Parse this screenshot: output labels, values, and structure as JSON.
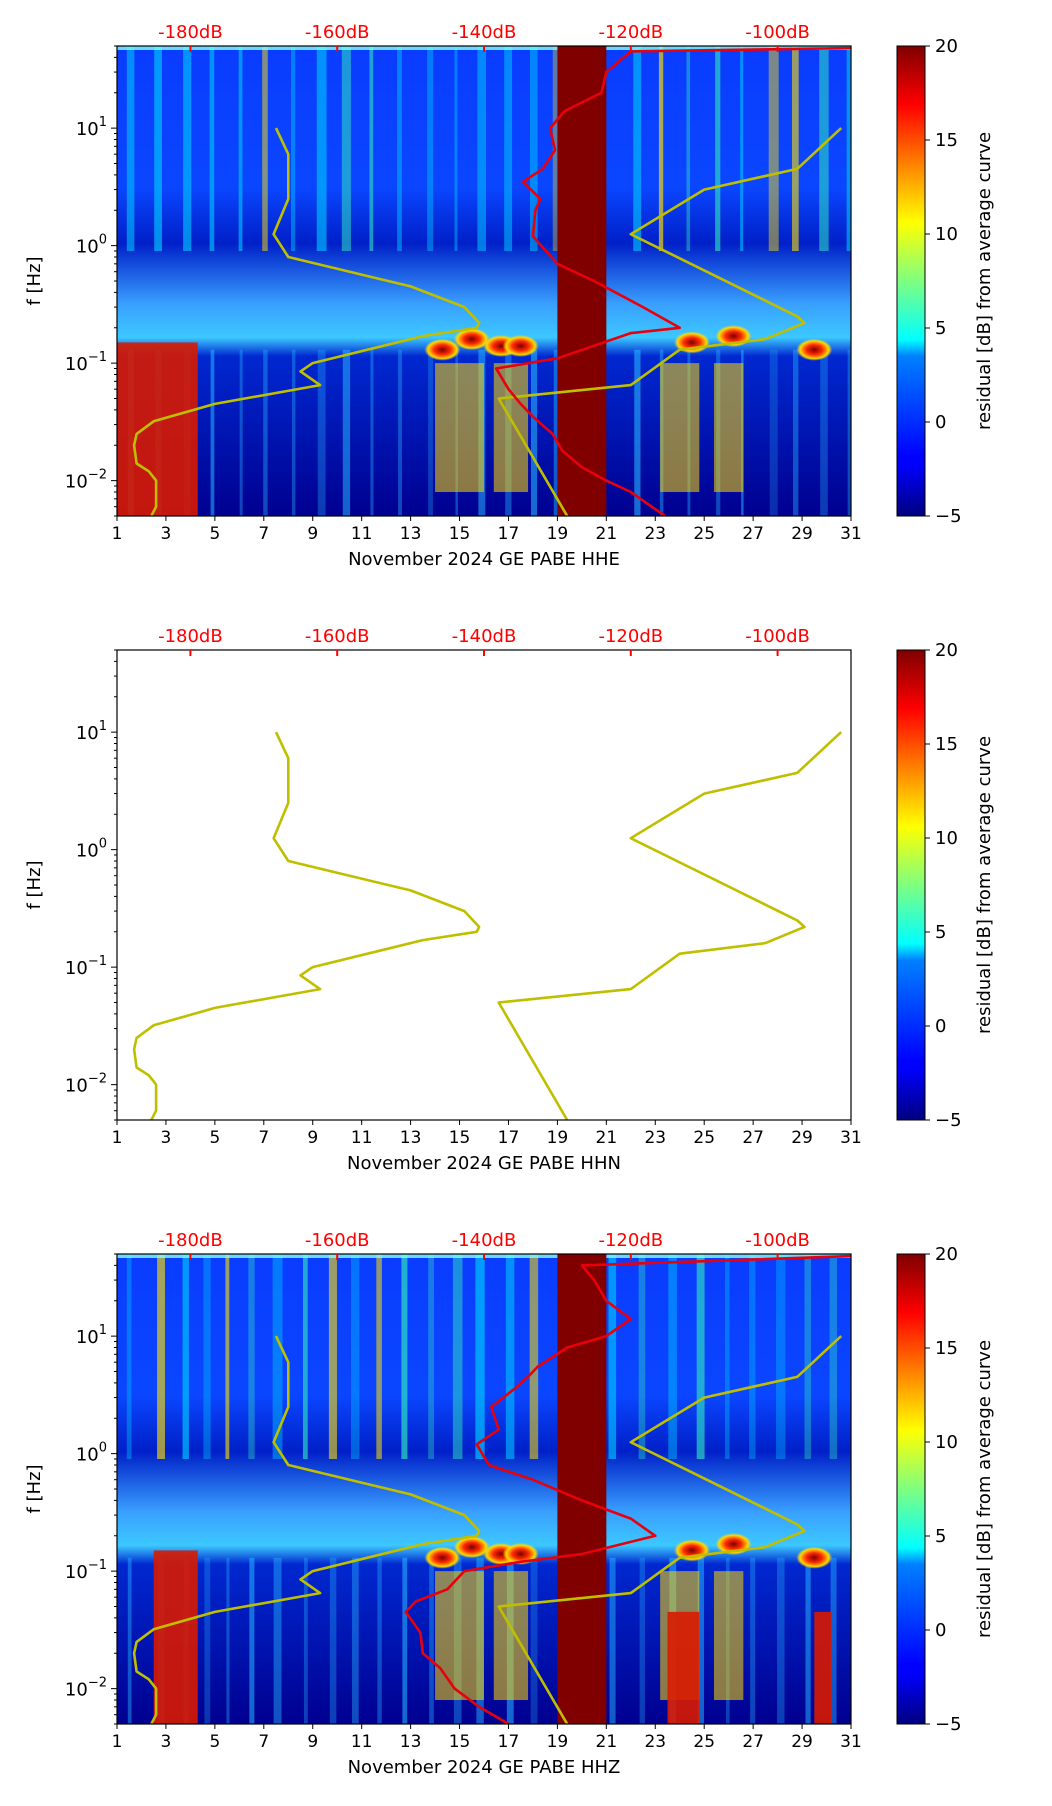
{
  "chart_data": [
    {
      "type": "heatmap",
      "panel": "top",
      "show_spectrogram": true,
      "xlabel": "November 2024 GE PABE  HHE",
      "ylabel": "f [Hz]",
      "x_ticks": [
        "1",
        "3",
        "5",
        "7",
        "9",
        "11",
        "13",
        "15",
        "17",
        "19",
        "21",
        "23",
        "25",
        "27",
        "29",
        "31"
      ],
      "xlim": [
        1,
        31
      ],
      "y_ticks": [
        {
          "value": 0.01,
          "base": "10",
          "exp": "−2"
        },
        {
          "value": 0.1,
          "base": "10",
          "exp": "−1"
        },
        {
          "value": 1,
          "base": "10",
          "exp": "0"
        },
        {
          "value": 10,
          "base": "10",
          "exp": "1"
        }
      ],
      "ylim": [
        0.005,
        50
      ],
      "top_axis": {
        "color": "#ff0000",
        "labels": [
          "-180dB",
          "-160dB",
          "-140dB",
          "-120dB",
          "-100dB"
        ],
        "positions": [
          4,
          10,
          16,
          22,
          28
        ]
      },
      "colorbar": {
        "label": "residual [dB] from average curve",
        "min": -5,
        "max": 20,
        "ticks": [
          "20",
          "15",
          "10",
          "5",
          "0",
          "−5"
        ],
        "tick_values": [
          20,
          15,
          10,
          5,
          0,
          -5
        ],
        "colormap": "jet"
      },
      "gap_band": {
        "x_start": 19,
        "x_end": 21,
        "color": "#800000"
      },
      "red_bands": [
        [
          1.0,
          4.3,
          0.005,
          0.15
        ]
      ],
      "hot_spots": [
        [
          14.3,
          0.13
        ],
        [
          15.5,
          0.16
        ],
        [
          16.7,
          0.14
        ],
        [
          17.5,
          0.14
        ],
        [
          24.5,
          0.15
        ],
        [
          26.2,
          0.17
        ],
        [
          29.5,
          0.13
        ]
      ],
      "series": [
        {
          "name": "NLNM",
          "color": "#bfbf00",
          "points": [
            [
              2.4,
              0.005
            ],
            [
              2.6,
              0.006
            ],
            [
              2.6,
              0.008
            ],
            [
              2.6,
              0.01
            ],
            [
              2.3,
              0.012
            ],
            [
              1.8,
              0.014
            ],
            [
              1.7,
              0.02
            ],
            [
              1.8,
              0.025
            ],
            [
              2.5,
              0.032
            ],
            [
              5.0,
              0.045
            ],
            [
              9.3,
              0.065
            ],
            [
              8.5,
              0.085
            ],
            [
              9.0,
              0.1
            ],
            [
              13.5,
              0.17
            ],
            [
              15.7,
              0.2
            ],
            [
              15.8,
              0.22
            ],
            [
              15.2,
              0.3
            ],
            [
              13.0,
              0.45
            ],
            [
              8.0,
              0.8
            ],
            [
              7.4,
              1.25
            ],
            [
              8.0,
              2.5
            ],
            [
              8.0,
              6.0
            ],
            [
              7.5,
              10.0
            ]
          ]
        },
        {
          "name": "NHNM",
          "color": "#bfbf00",
          "points": [
            [
              19.4,
              0.005
            ],
            [
              16.6,
              0.05
            ],
            [
              22.0,
              0.065
            ],
            [
              24.0,
              0.13
            ],
            [
              27.5,
              0.16
            ],
            [
              29.1,
              0.22
            ],
            [
              28.8,
              0.25
            ],
            [
              22.0,
              1.25
            ],
            [
              25.0,
              3.0
            ],
            [
              28.8,
              4.5
            ],
            [
              30.6,
              10.0
            ]
          ]
        },
        {
          "name": "residual curve",
          "color": "#e8000b",
          "points": [
            [
              23.4,
              0.005
            ],
            [
              22.0,
              0.008
            ],
            [
              21.0,
              0.01
            ],
            [
              20.0,
              0.013
            ],
            [
              19.2,
              0.018
            ],
            [
              18.8,
              0.025
            ],
            [
              18.0,
              0.035
            ],
            [
              17.5,
              0.045
            ],
            [
              17.0,
              0.06
            ],
            [
              16.5,
              0.09
            ],
            [
              19.0,
              0.11
            ],
            [
              22.0,
              0.18
            ],
            [
              24.0,
              0.2
            ],
            [
              22.5,
              0.3
            ],
            [
              20.5,
              0.5
            ],
            [
              19.0,
              0.7
            ],
            [
              18.0,
              1.2
            ],
            [
              18.1,
              2.0
            ],
            [
              18.3,
              2.5
            ],
            [
              17.6,
              3.5
            ],
            [
              18.4,
              4.5
            ],
            [
              18.9,
              6.5
            ],
            [
              18.7,
              10.0
            ],
            [
              19.3,
              14.0
            ],
            [
              20.8,
              20.0
            ],
            [
              21.0,
              30.0
            ],
            [
              22.0,
              45.0
            ],
            [
              31.0,
              48.0
            ]
          ]
        }
      ]
    },
    {
      "type": "line",
      "panel": "middle",
      "show_spectrogram": false,
      "xlabel": "November 2024 GE PABE  HHN",
      "ylabel": "f [Hz]",
      "x_ticks": [
        "1",
        "3",
        "5",
        "7",
        "9",
        "11",
        "13",
        "15",
        "17",
        "19",
        "21",
        "23",
        "25",
        "27",
        "29",
        "31"
      ],
      "xlim": [
        1,
        31
      ],
      "y_ticks": [
        {
          "value": 0.01,
          "base": "10",
          "exp": "−2"
        },
        {
          "value": 0.1,
          "base": "10",
          "exp": "−1"
        },
        {
          "value": 1,
          "base": "10",
          "exp": "0"
        },
        {
          "value": 10,
          "base": "10",
          "exp": "1"
        }
      ],
      "ylim": [
        0.005,
        50
      ],
      "top_axis": {
        "color": "#ff0000",
        "labels": [
          "-180dB",
          "-160dB",
          "-140dB",
          "-120dB",
          "-100dB"
        ],
        "positions": [
          4,
          10,
          16,
          22,
          28
        ]
      },
      "colorbar": {
        "label": "residual [dB] from average curve",
        "min": -5,
        "max": 20,
        "ticks": [
          "20",
          "15",
          "10",
          "5",
          "0",
          "−5"
        ],
        "tick_values": [
          20,
          15,
          10,
          5,
          0,
          -5
        ],
        "colormap": "jet"
      },
      "series": [
        {
          "name": "NLNM",
          "color": "#bfbf00",
          "points": [
            [
              2.4,
              0.005
            ],
            [
              2.6,
              0.006
            ],
            [
              2.6,
              0.008
            ],
            [
              2.6,
              0.01
            ],
            [
              2.3,
              0.012
            ],
            [
              1.8,
              0.014
            ],
            [
              1.7,
              0.02
            ],
            [
              1.8,
              0.025
            ],
            [
              2.5,
              0.032
            ],
            [
              5.0,
              0.045
            ],
            [
              9.3,
              0.065
            ],
            [
              8.5,
              0.085
            ],
            [
              9.0,
              0.1
            ],
            [
              13.5,
              0.17
            ],
            [
              15.7,
              0.2
            ],
            [
              15.8,
              0.22
            ],
            [
              15.2,
              0.3
            ],
            [
              13.0,
              0.45
            ],
            [
              8.0,
              0.8
            ],
            [
              7.4,
              1.25
            ],
            [
              8.0,
              2.5
            ],
            [
              8.0,
              6.0
            ],
            [
              7.5,
              10.0
            ]
          ]
        },
        {
          "name": "NHNM",
          "color": "#bfbf00",
          "points": [
            [
              19.4,
              0.005
            ],
            [
              16.6,
              0.05
            ],
            [
              22.0,
              0.065
            ],
            [
              24.0,
              0.13
            ],
            [
              27.5,
              0.16
            ],
            [
              29.1,
              0.22
            ],
            [
              28.8,
              0.25
            ],
            [
              22.0,
              1.25
            ],
            [
              25.0,
              3.0
            ],
            [
              28.8,
              4.5
            ],
            [
              30.6,
              10.0
            ]
          ]
        }
      ]
    },
    {
      "type": "heatmap",
      "panel": "bottom",
      "show_spectrogram": true,
      "xlabel": "November 2024 GE PABE  HHZ",
      "ylabel": "f [Hz]",
      "x_ticks": [
        "1",
        "3",
        "5",
        "7",
        "9",
        "11",
        "13",
        "15",
        "17",
        "19",
        "21",
        "23",
        "25",
        "27",
        "29",
        "31"
      ],
      "xlim": [
        1,
        31
      ],
      "y_ticks": [
        {
          "value": 0.01,
          "base": "10",
          "exp": "−2"
        },
        {
          "value": 0.1,
          "base": "10",
          "exp": "−1"
        },
        {
          "value": 1,
          "base": "10",
          "exp": "0"
        },
        {
          "value": 10,
          "base": "10",
          "exp": "1"
        }
      ],
      "ylim": [
        0.005,
        50
      ],
      "top_axis": {
        "color": "#ff0000",
        "labels": [
          "-180dB",
          "-160dB",
          "-140dB",
          "-120dB",
          "-100dB"
        ],
        "positions": [
          4,
          10,
          16,
          22,
          28
        ]
      },
      "colorbar": {
        "label": "residual [dB] from average curve",
        "min": -5,
        "max": 20,
        "ticks": [
          "20",
          "15",
          "10",
          "5",
          "0",
          "−5"
        ],
        "tick_values": [
          20,
          15,
          10,
          5,
          0,
          -5
        ],
        "colormap": "jet"
      },
      "gap_band": {
        "x_start": 19,
        "x_end": 21,
        "color": "#800000"
      },
      "red_bands": [
        [
          2.5,
          4.3,
          0.005,
          0.15
        ],
        [
          23.5,
          24.8,
          0.005,
          0.045
        ],
        [
          29.5,
          30.2,
          0.005,
          0.045
        ]
      ],
      "hot_spots": [
        [
          14.3,
          0.13
        ],
        [
          15.5,
          0.16
        ],
        [
          16.7,
          0.14
        ],
        [
          17.5,
          0.14
        ],
        [
          24.5,
          0.15
        ],
        [
          26.2,
          0.17
        ],
        [
          29.5,
          0.13
        ]
      ],
      "series": [
        {
          "name": "NLNM",
          "color": "#bfbf00",
          "points": [
            [
              2.4,
              0.005
            ],
            [
              2.6,
              0.006
            ],
            [
              2.6,
              0.008
            ],
            [
              2.6,
              0.01
            ],
            [
              2.3,
              0.012
            ],
            [
              1.8,
              0.014
            ],
            [
              1.7,
              0.02
            ],
            [
              1.8,
              0.025
            ],
            [
              2.5,
              0.032
            ],
            [
              5.0,
              0.045
            ],
            [
              9.3,
              0.065
            ],
            [
              8.5,
              0.085
            ],
            [
              9.0,
              0.1
            ],
            [
              13.5,
              0.17
            ],
            [
              15.7,
              0.2
            ],
            [
              15.8,
              0.22
            ],
            [
              15.2,
              0.3
            ],
            [
              13.0,
              0.45
            ],
            [
              8.0,
              0.8
            ],
            [
              7.4,
              1.25
            ],
            [
              8.0,
              2.5
            ],
            [
              8.0,
              6.0
            ],
            [
              7.5,
              10.0
            ]
          ]
        },
        {
          "name": "NHNM",
          "color": "#bfbf00",
          "points": [
            [
              19.4,
              0.005
            ],
            [
              16.6,
              0.05
            ],
            [
              22.0,
              0.065
            ],
            [
              24.0,
              0.13
            ],
            [
              27.5,
              0.16
            ],
            [
              29.1,
              0.22
            ],
            [
              28.8,
              0.25
            ],
            [
              22.0,
              1.25
            ],
            [
              25.0,
              3.0
            ],
            [
              28.8,
              4.5
            ],
            [
              30.6,
              10.0
            ]
          ]
        },
        {
          "name": "residual curve",
          "color": "#e8000b",
          "points": [
            [
              17.0,
              0.005
            ],
            [
              15.8,
              0.007
            ],
            [
              14.8,
              0.01
            ],
            [
              14.2,
              0.015
            ],
            [
              13.5,
              0.02
            ],
            [
              13.4,
              0.03
            ],
            [
              12.8,
              0.045
            ],
            [
              13.2,
              0.055
            ],
            [
              14.5,
              0.07
            ],
            [
              15.2,
              0.1
            ],
            [
              17.5,
              0.12
            ],
            [
              20.0,
              0.14
            ],
            [
              23.0,
              0.2
            ],
            [
              22.0,
              0.28
            ],
            [
              20.0,
              0.4
            ],
            [
              18.0,
              0.6
            ],
            [
              16.2,
              0.8
            ],
            [
              15.7,
              1.2
            ],
            [
              16.6,
              1.6
            ],
            [
              16.3,
              2.5
            ],
            [
              17.2,
              3.5
            ],
            [
              17.8,
              4.5
            ],
            [
              18.2,
              5.5
            ],
            [
              19.4,
              8.0
            ],
            [
              21.0,
              10.0
            ],
            [
              22.0,
              14.0
            ],
            [
              21.0,
              20.0
            ],
            [
              20.5,
              30.0
            ],
            [
              20.0,
              40.0
            ],
            [
              31.0,
              48.0
            ]
          ]
        }
      ]
    }
  ]
}
